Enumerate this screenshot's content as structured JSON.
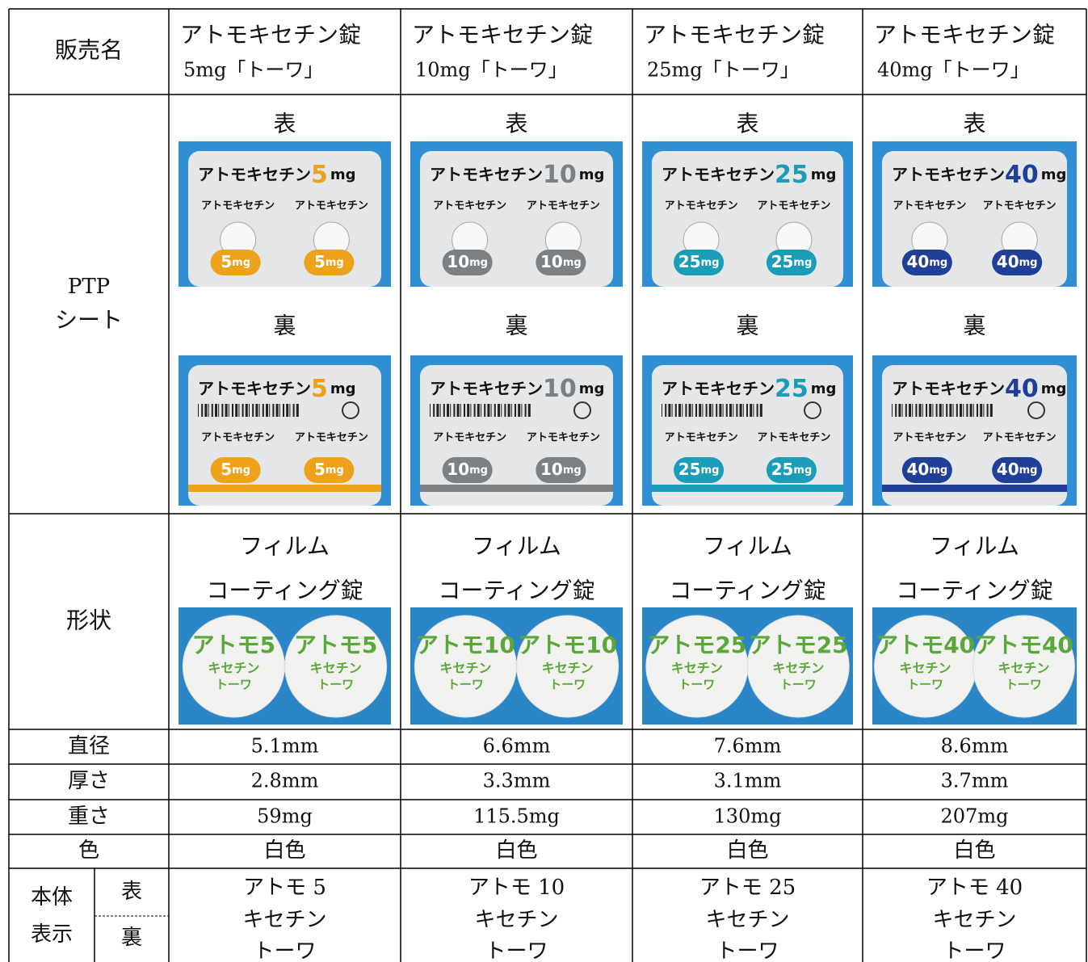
{
  "table": {
    "row_labels": {
      "name": "販売名",
      "ptp": [
        "PTP",
        "シート"
      ],
      "front": "表",
      "back": "裏",
      "shape": "形状",
      "diameter": "直径",
      "thickness": "厚さ",
      "weight": "重さ",
      "color": "色",
      "marking": [
        "本体",
        "表示"
      ]
    },
    "products": [
      {
        "name": [
          "アトモキセチン錠",
          "5mg「トーワ」"
        ],
        "ptp_title": "アトモキセチン",
        "ptp_dose": "5",
        "ptp_unit": "mg",
        "sheet_color": "#eea21c",
        "imprint": [
          "アトモ5",
          "キセチン",
          "トーワ"
        ],
        "shape": [
          "フィルム",
          "コーティング錠"
        ],
        "diameter": "5.1mm",
        "thickness": "2.8mm",
        "weight": "59mg",
        "color": "白色",
        "marking": [
          "アトモ 5",
          "キセチン",
          "トーワ"
        ]
      },
      {
        "name": [
          "アトモキセチン錠",
          "10mg「トーワ」"
        ],
        "ptp_title": "アトモキセチン",
        "ptp_dose": "10",
        "ptp_unit": "mg",
        "sheet_color": "#7b8084",
        "imprint": [
          "アトモ10",
          "キセチン",
          "トーワ"
        ],
        "shape": [
          "フィルム",
          "コーティング錠"
        ],
        "diameter": "6.6mm",
        "thickness": "3.3mm",
        "weight": "115.5mg",
        "color": "白色",
        "marking": [
          "アトモ 10",
          "キセチン",
          "トーワ"
        ]
      },
      {
        "name": [
          "アトモキセチン錠",
          "25mg「トーワ」"
        ],
        "ptp_title": "アトモキセチン",
        "ptp_dose": "25",
        "ptp_unit": "mg",
        "sheet_color": "#1b9db7",
        "imprint": [
          "アトモ25",
          "キセチン",
          "トーワ"
        ],
        "shape": [
          "フィルム",
          "コーティング錠"
        ],
        "diameter": "7.6mm",
        "thickness": "3.1mm",
        "weight": "130mg",
        "color": "白色",
        "marking": [
          "アトモ 25",
          "キセチン",
          "トーワ"
        ]
      },
      {
        "name": [
          "アトモキセチン錠",
          "40mg「トーワ」"
        ],
        "ptp_title": "アトモキセチン",
        "ptp_dose": "40",
        "ptp_unit": "mg",
        "sheet_color": "#1f3f98",
        "imprint": [
          "アトモ40",
          "キセチン",
          "トーワ"
        ],
        "shape": [
          "フィルム",
          "コーティング錠"
        ],
        "diameter": "8.6mm",
        "thickness": "3.7mm",
        "weight": "207mg",
        "color": "白色",
        "marking": [
          "アトモ 40",
          "キセチン",
          "トーワ"
        ]
      }
    ]
  }
}
